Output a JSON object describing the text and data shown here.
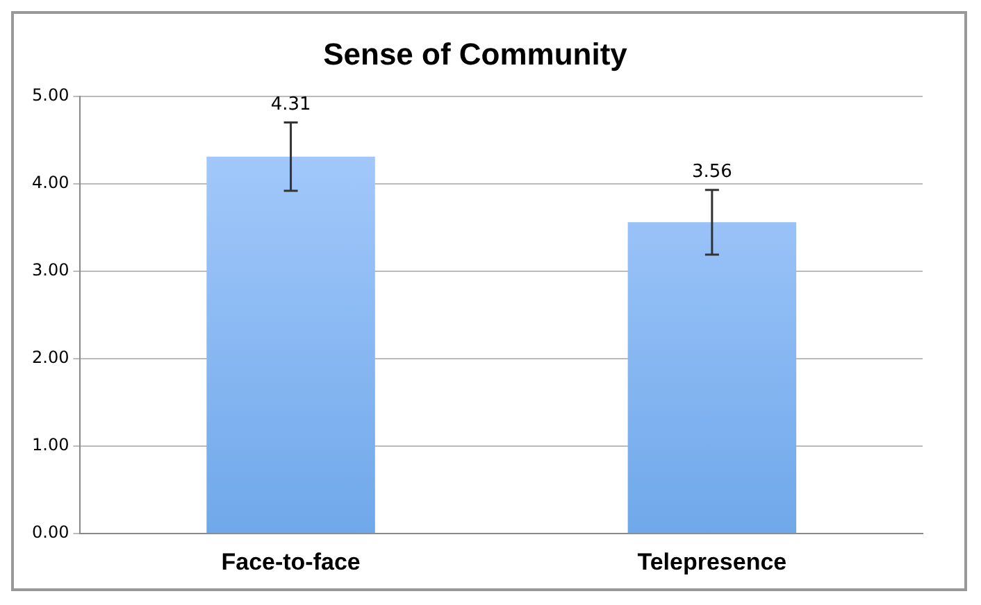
{
  "chart_data": {
    "type": "bar",
    "title": "Sense of Community",
    "categories": [
      "Face-to-face",
      "Telepresence"
    ],
    "values": [
      4.31,
      3.56
    ],
    "errors": [
      0.39,
      0.37
    ],
    "color": "#6fa8ea",
    "data_labels": true,
    "ylim": [
      0,
      5
    ],
    "yticks": [
      {
        "value": 0,
        "label": "0.00"
      },
      {
        "value": 1,
        "label": "1.00"
      },
      {
        "value": 2,
        "label": "2.00"
      },
      {
        "value": 3,
        "label": "3.00"
      },
      {
        "value": 4,
        "label": "4.00"
      },
      {
        "value": 5,
        "label": "5.00"
      }
    ],
    "grid": "y",
    "legend": false
  }
}
